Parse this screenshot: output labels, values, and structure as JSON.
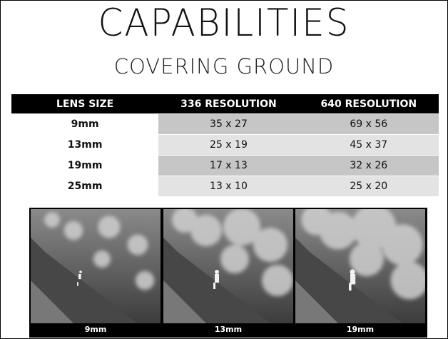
{
  "header": {
    "title": "CAPABILITIES",
    "subtitle": "COVERING GROUND"
  },
  "table": {
    "columns": [
      "LENS SIZE",
      "336 RESOLUTION",
      "640 RESOLUTION"
    ],
    "rows": [
      [
        "9mm",
        "35 x 27",
        "69 x 56"
      ],
      [
        "13mm",
        "25 x 19",
        "45 x 37"
      ],
      [
        "19mm",
        "17 x 13",
        "32 x 26"
      ],
      [
        "25mm",
        "13 x 10",
        "25 x 20"
      ]
    ]
  },
  "images": [
    {
      "caption": "9mm"
    },
    {
      "caption": "13mm"
    },
    {
      "caption": "19mm"
    }
  ]
}
